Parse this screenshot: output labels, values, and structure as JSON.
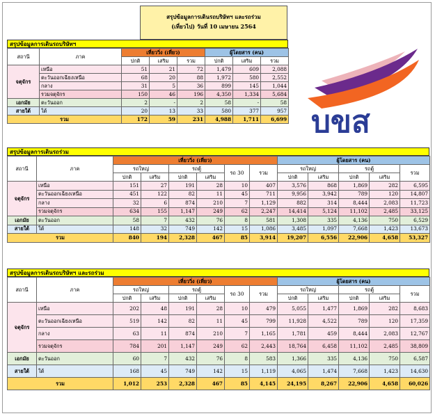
{
  "title": {
    "line1": "สรุปข้อมูลการเดินรถบริษัทฯ และรถร่วม",
    "line2": "(เที่ยวไป) วันที่ 10 เมษายน 2564"
  },
  "logo": {
    "text": "บขส",
    "colors": {
      "wave_purple": "#6b2a8c",
      "wave_orange": "#f26522",
      "text_blue": "#2b3d96",
      "wave_light": "#e8a0a8"
    }
  },
  "s1": {
    "title": "สรุปข้อมูลการเดินรถบริษัทฯ",
    "h_station": "สถานี",
    "h_region": "ภาค",
    "h_trips": "เที่ยววิ่ง (เที่ยว)",
    "h_pax": "ผู้โดยสาร (คน)",
    "h_normal": "ปกติ",
    "h_extra": "เสริม",
    "h_total": "รวม",
    "station1": "จตุจักร",
    "rows": [
      {
        "region": "เหนือ",
        "v": [
          "51",
          "21",
          "72",
          "1,479",
          "609",
          "2,088"
        ]
      },
      {
        "region": "ตะวันออกเฉียงเหนือ",
        "v": [
          "68",
          "20",
          "88",
          "1,972",
          "580",
          "2,552"
        ]
      },
      {
        "region": "กลาง",
        "v": [
          "31",
          "5",
          "36",
          "899",
          "145",
          "1,044"
        ]
      },
      {
        "region": "รวมจตุจักร",
        "v": [
          "150",
          "46",
          "196",
          "4,350",
          "1,334",
          "5,684"
        ]
      },
      {
        "station": "เอกมัย",
        "region": "ตะวันออก",
        "v": [
          "2",
          "-",
          "2",
          "58",
          "-",
          "58"
        ]
      },
      {
        "station": "สายใต้",
        "region": "ใต้",
        "v": [
          "20",
          "13",
          "33",
          "580",
          "377",
          "957"
        ]
      },
      {
        "station": "รวม",
        "v": [
          "172",
          "59",
          "231",
          "4,988",
          "1,711",
          "6,699"
        ]
      }
    ]
  },
  "s2": {
    "title": "สรุปข้อมูลการเดินรถร่วม",
    "h_station": "สถานี",
    "h_region": "ภาค",
    "h_trips": "เที่ยววิ่ง (เที่ยว)",
    "h_pax": "ผู้โดยสาร (คน)",
    "h_bigbus": "รถใหญ่",
    "h_van": "รถตู้",
    "h_r30": "รถ 30",
    "h_total": "รวม",
    "h_normal": "ปกติ",
    "h_extra": "เสริม",
    "station1": "จตุจักร",
    "rows": [
      {
        "region": "เหนือ",
        "v": [
          "151",
          "27",
          "191",
          "28",
          "10",
          "407",
          "3,576",
          "868",
          "1,869",
          "282",
          "6,595"
        ]
      },
      {
        "region": "ตะวันออกเฉียงเหนือ",
        "v": [
          "451",
          "122",
          "82",
          "11",
          "45",
          "711",
          "9,956",
          "3,942",
          "789",
          "120",
          "14,807"
        ]
      },
      {
        "region": "กลาง",
        "v": [
          "32",
          "6",
          "874",
          "210",
          "7",
          "1,129",
          "882",
          "314",
          "8,444",
          "2,083",
          "11,723"
        ]
      },
      {
        "region": "รวมจตุจักร",
        "v": [
          "634",
          "155",
          "1,147",
          "249",
          "62",
          "2,247",
          "14,414",
          "5,124",
          "11,102",
          "2,485",
          "33,125"
        ]
      },
      {
        "station": "เอกมัย",
        "region": "ตะวันออก",
        "v": [
          "58",
          "7",
          "432",
          "76",
          "8",
          "581",
          "1,308",
          "335",
          "4,136",
          "750",
          "6,529"
        ]
      },
      {
        "station": "สายใต้",
        "region": "ใต้",
        "v": [
          "148",
          "32",
          "749",
          "142",
          "15",
          "1,086",
          "3,485",
          "1,097",
          "7,668",
          "1,423",
          "13,673"
        ]
      },
      {
        "station": "รวม",
        "v": [
          "840",
          "194",
          "2,328",
          "467",
          "85",
          "3,914",
          "19,207",
          "6,556",
          "22,906",
          "4,658",
          "53,327"
        ]
      }
    ]
  },
  "s3": {
    "title": "สรุปข้อมูลการเดินรถบริษัทฯ และรถร่วม",
    "h_station": "สถานี",
    "h_region": "ภาค",
    "h_trips": "เที่ยววิ่ง (เที่ยว)",
    "h_pax": "ผู้โดยสาร (คน)",
    "h_bigbus": "รถใหญ่",
    "h_van": "รถตู้",
    "h_r30": "รถ 30",
    "h_total": "รวม",
    "h_normal": "ปกติ",
    "h_extra": "เสริม",
    "station1": "จตุจักร",
    "rows": [
      {
        "region": "เหนือ",
        "v": [
          "202",
          "48",
          "191",
          "28",
          "10",
          "479",
          "5,055",
          "1,477",
          "1,869",
          "282",
          "8,683"
        ]
      },
      {
        "region": "ตะวันออกเฉียงเหนือ",
        "v": [
          "519",
          "142",
          "82",
          "11",
          "45",
          "799",
          "11,928",
          "4,522",
          "789",
          "120",
          "17,359"
        ]
      },
      {
        "region": "กลาง",
        "v": [
          "63",
          "11",
          "874",
          "210",
          "7",
          "1,165",
          "1,781",
          "459",
          "8,444",
          "2,083",
          "12,767"
        ]
      },
      {
        "region": "รวมจตุจักร",
        "v": [
          "784",
          "201",
          "1,147",
          "249",
          "62",
          "2,443",
          "18,764",
          "6,458",
          "11,102",
          "2,485",
          "38,809"
        ]
      },
      {
        "station": "เอกมัย",
        "region": "ตะวันออก",
        "v": [
          "60",
          "7",
          "432",
          "76",
          "8",
          "583",
          "1,366",
          "335",
          "4,136",
          "750",
          "6,587"
        ]
      },
      {
        "station": "สายใต้",
        "region": "ใต้",
        "v": [
          "168",
          "45",
          "749",
          "142",
          "15",
          "1,119",
          "4,065",
          "1,474",
          "7,668",
          "1,423",
          "14,630"
        ]
      },
      {
        "station": "รวม",
        "v": [
          "1,012",
          "253",
          "2,328",
          "467",
          "85",
          "4,145",
          "24,195",
          "8,267",
          "22,906",
          "4,658",
          "60,026"
        ]
      }
    ]
  }
}
